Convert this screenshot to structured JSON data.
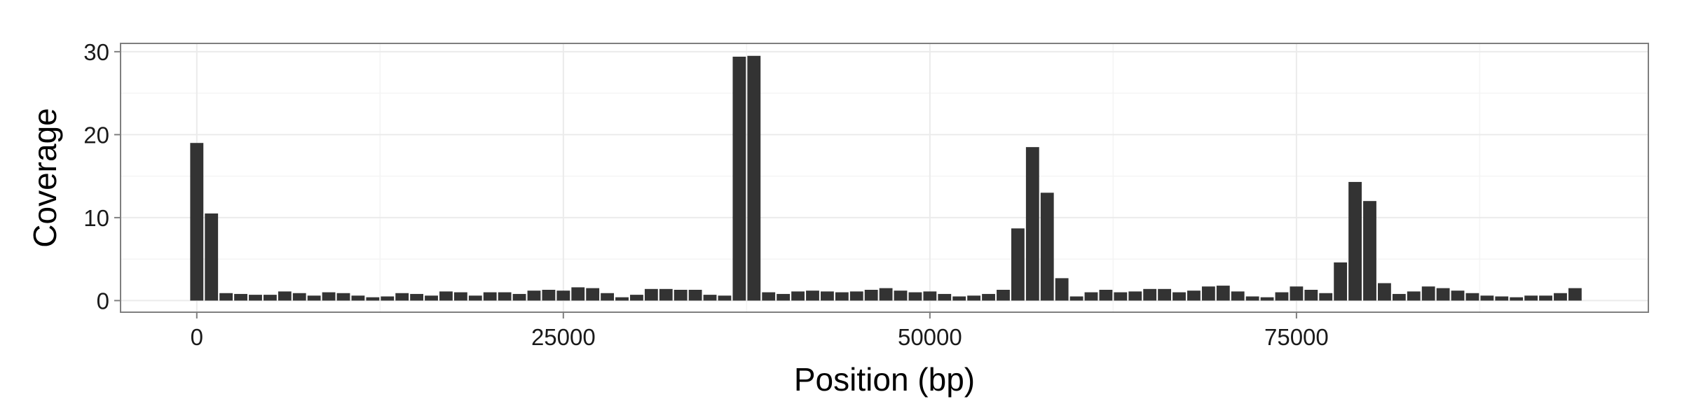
{
  "chart_data": {
    "type": "bar",
    "title": "",
    "xlabel": "Position (bp)",
    "ylabel": "Coverage",
    "xlim": [
      -5200,
      99000
    ],
    "ylim": [
      -1.4,
      31
    ],
    "x_ticks": [
      0,
      25000,
      50000,
      75000
    ],
    "x_tick_labels": [
      "0",
      "25000",
      "50000",
      "75000"
    ],
    "y_ticks": [
      0,
      10,
      20,
      30
    ],
    "y_tick_labels": [
      "0",
      "10",
      "20",
      "30"
    ],
    "grid": true,
    "bin_width": 1000,
    "bar_color": "#333333",
    "x": [
      0,
      1000,
      2000,
      3000,
      4000,
      5000,
      6000,
      7000,
      8000,
      9000,
      10000,
      11000,
      12000,
      13000,
      14000,
      15000,
      16000,
      17000,
      18000,
      19000,
      20000,
      21000,
      22000,
      23000,
      24000,
      25000,
      26000,
      27000,
      28000,
      29000,
      30000,
      31000,
      32000,
      33000,
      34000,
      35000,
      36000,
      37000,
      38000,
      39000,
      40000,
      41000,
      42000,
      43000,
      44000,
      45000,
      46000,
      47000,
      48000,
      49000,
      50000,
      51000,
      52000,
      53000,
      54000,
      55000,
      56000,
      57000,
      58000,
      59000,
      60000,
      61000,
      62000,
      63000,
      64000,
      65000,
      66000,
      67000,
      68000,
      69000,
      70000,
      71000,
      72000,
      73000,
      74000,
      75000,
      76000,
      77000,
      78000,
      79000,
      80000,
      81000,
      82000,
      83000,
      84000,
      85000,
      86000,
      87000,
      88000,
      89000,
      90000,
      91000,
      92000,
      93000,
      94000
    ],
    "values": [
      19.0,
      10.5,
      0.9,
      0.8,
      0.7,
      0.7,
      1.1,
      0.9,
      0.6,
      1.0,
      0.9,
      0.6,
      0.4,
      0.5,
      0.9,
      0.8,
      0.6,
      1.1,
      1.0,
      0.6,
      1.0,
      1.0,
      0.8,
      1.2,
      1.3,
      1.2,
      1.6,
      1.5,
      0.9,
      0.4,
      0.7,
      1.4,
      1.4,
      1.3,
      1.3,
      0.7,
      0.6,
      29.4,
      29.5,
      1.0,
      0.8,
      1.1,
      1.2,
      1.1,
      1.0,
      1.1,
      1.3,
      1.5,
      1.2,
      1.0,
      1.1,
      0.8,
      0.5,
      0.6,
      0.8,
      1.3,
      8.7,
      18.5,
      13.0,
      2.7,
      0.5,
      1.0,
      1.3,
      1.0,
      1.1,
      1.4,
      1.4,
      1.0,
      1.2,
      1.7,
      1.8,
      1.1,
      0.5,
      0.4,
      1.0,
      1.7,
      1.3,
      0.9,
      4.6,
      14.3,
      12.0,
      2.1,
      0.8,
      1.1,
      1.7,
      1.5,
      1.2,
      0.9,
      0.6,
      0.5,
      0.4,
      0.6,
      0.6,
      0.9,
      1.5
    ]
  }
}
